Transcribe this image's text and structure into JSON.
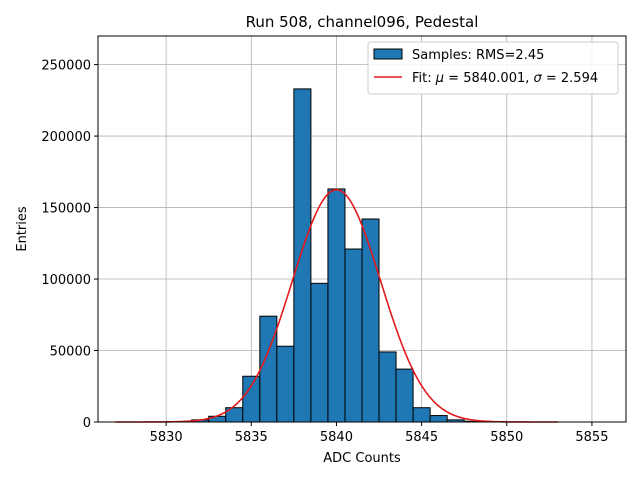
{
  "chart_data": {
    "type": "bar",
    "title": "Run 508, channel096, Pedestal",
    "xlabel": "ADC Counts",
    "ylabel": "Entries",
    "xlim": [
      5826,
      5857
    ],
    "ylim": [
      0,
      270000
    ],
    "grid": true,
    "legend_position": "top-right",
    "xticks": [
      5830,
      5835,
      5840,
      5845,
      5850,
      5855
    ],
    "yticks": [
      0,
      50000,
      100000,
      150000,
      200000,
      250000
    ],
    "bin_width": 1,
    "bins": [
      {
        "x": 5832,
        "value": 1500
      },
      {
        "x": 5833,
        "value": 4000
      },
      {
        "x": 5834,
        "value": 10000
      },
      {
        "x": 5835,
        "value": 32000
      },
      {
        "x": 5836,
        "value": 74000
      },
      {
        "x": 5837,
        "value": 53000
      },
      {
        "x": 5838,
        "value": 233000
      },
      {
        "x": 5839,
        "value": 97000
      },
      {
        "x": 5840,
        "value": 163000
      },
      {
        "x": 5841,
        "value": 121000
      },
      {
        "x": 5842,
        "value": 142000
      },
      {
        "x": 5843,
        "value": 49000
      },
      {
        "x": 5844,
        "value": 37000
      },
      {
        "x": 5845,
        "value": 10000
      },
      {
        "x": 5846,
        "value": 4500
      },
      {
        "x": 5847,
        "value": 1500
      },
      {
        "x": 5848,
        "value": 500
      }
    ],
    "fit": {
      "mu": 5840.001,
      "sigma": 2.594,
      "amplitude": 162500,
      "x_range": [
        5827,
        5853
      ]
    },
    "colors": {
      "bars": "#1f77b4",
      "bar_edge": "#000000",
      "fit_line": "#e31a1c",
      "grid": "#b0b0b0"
    },
    "legend": {
      "samples_label": "Samples: RMS=2.45",
      "fit_prefix": "Fit: ",
      "mu_symbol": "μ",
      "mu_text": " = 5840.001, ",
      "sigma_symbol": "σ",
      "sigma_text": " = 2.594"
    }
  }
}
